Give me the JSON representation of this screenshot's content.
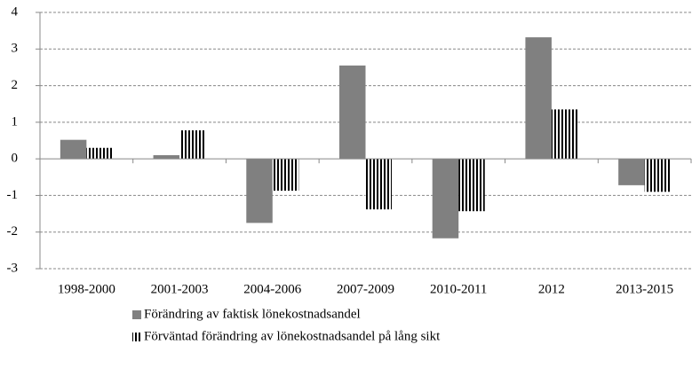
{
  "chart_data": {
    "type": "bar",
    "categories": [
      "1998-2000",
      "2001-2003",
      "2004-2006",
      "2007-2009",
      "2010-2011",
      "2012",
      "2013-2015"
    ],
    "series": [
      {
        "name": "Förändring av faktisk lönekostnadsandel",
        "color": "#808080",
        "pattern": "solid",
        "values": [
          0.52,
          0.1,
          -1.75,
          2.55,
          -2.17,
          3.32,
          -0.72
        ]
      },
      {
        "name": "Förväntad förändring av lönekostnadsandel på lång sikt",
        "color": "#000000",
        "pattern": "stripes",
        "values": [
          0.3,
          0.78,
          -0.87,
          -1.38,
          -1.43,
          1.35,
          -0.9
        ]
      }
    ],
    "ylim": [
      -3,
      4
    ],
    "yticks": [
      -3,
      -2,
      -1,
      0,
      1,
      2,
      3,
      4
    ],
    "grid": true,
    "legend": "bottom"
  }
}
